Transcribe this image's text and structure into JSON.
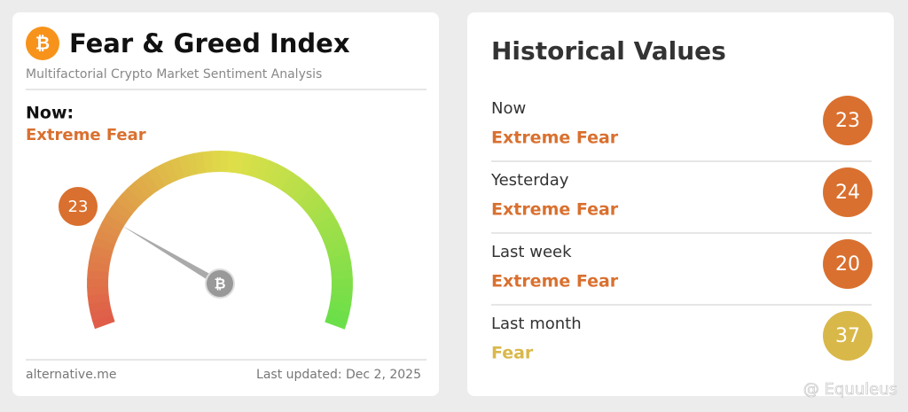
{
  "left_card": {
    "title": "Fear & Greed Index",
    "subtitle": "Multifactorial Crypto Market Sentiment Analysis",
    "now_label": "Now:",
    "now_status": "Extreme Fear",
    "status_color": "#d9702f",
    "gauge": {
      "value": 23,
      "range": [
        0,
        100
      ]
    },
    "source": "alternative.me",
    "updated": "Last updated: Dec 2, 2025"
  },
  "right_card": {
    "title": "Historical Values",
    "rows": [
      {
        "label": "Now",
        "status": "Extreme Fear",
        "value": 23,
        "color": "#d9702f"
      },
      {
        "label": "Yesterday",
        "status": "Extreme Fear",
        "value": 24,
        "color": "#d9702f"
      },
      {
        "label": "Last week",
        "status": "Extreme Fear",
        "value": 20,
        "color": "#d9702f"
      },
      {
        "label": "Last month",
        "status": "Fear",
        "value": 37,
        "color": "#d9b84a"
      }
    ]
  },
  "watermark": "@ Equuleus"
}
